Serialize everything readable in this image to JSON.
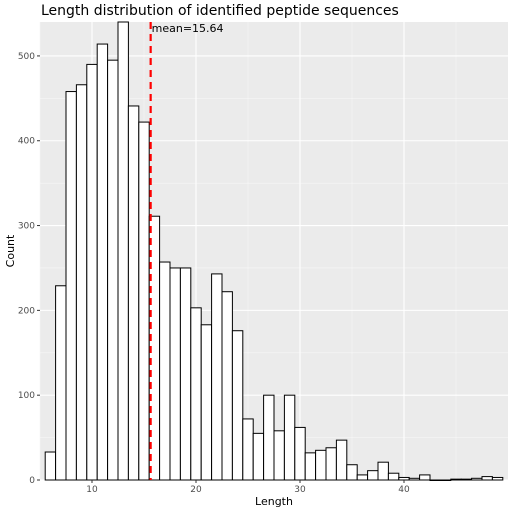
{
  "chart_data": {
    "type": "bar",
    "title": "Length distribution of identified peptide sequences",
    "xlabel": "Length",
    "ylabel": "Count",
    "xlim": [
      5,
      50
    ],
    "ylim": [
      0,
      540
    ],
    "x_ticks": [
      10,
      20,
      30,
      40
    ],
    "y_ticks": [
      0,
      100,
      200,
      300,
      400,
      500
    ],
    "grid": true,
    "bins": {
      "x": [
        6,
        7,
        8,
        9,
        10,
        11,
        12,
        13,
        14,
        15,
        16,
        17,
        18,
        19,
        20,
        21,
        22,
        23,
        24,
        25,
        26,
        27,
        28,
        29,
        30,
        31,
        32,
        33,
        34,
        35,
        36,
        37,
        38,
        39,
        40,
        41,
        42,
        43,
        44,
        45,
        46,
        47,
        48,
        49
      ],
      "counts": [
        33,
        229,
        458,
        466,
        490,
        514,
        495,
        540,
        441,
        422,
        311,
        257,
        250,
        250,
        203,
        183,
        243,
        222,
        176,
        72,
        55,
        100,
        58,
        100,
        62,
        32,
        35,
        38,
        47,
        18,
        6,
        11,
        21,
        8,
        3,
        2,
        6,
        0,
        0,
        1,
        1,
        2,
        4,
        3
      ]
    },
    "reference_line": {
      "x": 15.64,
      "label": "mean=15.64",
      "color": "#ff0000",
      "style": "dashed"
    },
    "colors": {
      "panel": "#ebebeb",
      "grid_major": "#ffffff",
      "bar_fill": "#ffffff",
      "bar_stroke": "#000000"
    }
  }
}
